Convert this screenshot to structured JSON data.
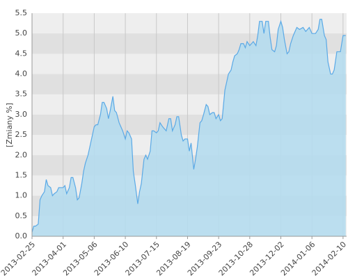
{
  "chart_data": {
    "type": "area",
    "y_label": "[Zmiany %]",
    "x": [
      "2013-02-25",
      "2013-02-27",
      "2013-03-01",
      "2013-03-04",
      "2013-03-06",
      "2013-03-08",
      "2013-03-11",
      "2013-03-13",
      "2013-03-15",
      "2013-03-18",
      "2013-03-20",
      "2013-03-22",
      "2013-03-25",
      "2013-03-27",
      "2013-04-01",
      "2013-04-03",
      "2013-04-05",
      "2013-04-08",
      "2013-04-10",
      "2013-04-12",
      "2013-04-15",
      "2013-04-17",
      "2013-04-19",
      "2013-04-22",
      "2013-04-24",
      "2013-04-26",
      "2013-04-29",
      "2013-05-01",
      "2013-05-03",
      "2013-05-06",
      "2013-05-08",
      "2013-05-10",
      "2013-05-13",
      "2013-05-15",
      "2013-05-17",
      "2013-05-20",
      "2013-05-22",
      "2013-05-24",
      "2013-05-27",
      "2013-05-29",
      "2013-05-31",
      "2013-06-03",
      "2013-06-05",
      "2013-06-07",
      "2013-06-10",
      "2013-06-12",
      "2013-06-14",
      "2013-06-17",
      "2013-06-19",
      "2013-06-21",
      "2013-06-24",
      "2013-06-26",
      "2013-06-28",
      "2013-07-01",
      "2013-07-03",
      "2013-07-05",
      "2013-07-08",
      "2013-07-10",
      "2013-07-12",
      "2013-07-15",
      "2013-07-17",
      "2013-07-19",
      "2013-07-22",
      "2013-07-24",
      "2013-07-26",
      "2013-07-29",
      "2013-07-31",
      "2013-08-02",
      "2013-08-05",
      "2013-08-07",
      "2013-08-09",
      "2013-08-12",
      "2013-08-14",
      "2013-08-16",
      "2013-08-19",
      "2013-08-21",
      "2013-08-23",
      "2013-08-26",
      "2013-08-28",
      "2013-08-30",
      "2013-09-02",
      "2013-09-04",
      "2013-09-06",
      "2013-09-09",
      "2013-09-11",
      "2013-09-13",
      "2013-09-16",
      "2013-09-18",
      "2013-09-20",
      "2013-09-23",
      "2013-09-25",
      "2013-09-27",
      "2013-09-30",
      "2013-10-02",
      "2013-10-04",
      "2013-10-07",
      "2013-10-09",
      "2013-10-11",
      "2013-10-14",
      "2013-10-16",
      "2013-10-18",
      "2013-10-21",
      "2013-10-23",
      "2013-10-25",
      "2013-10-28",
      "2013-10-30",
      "2013-11-01",
      "2013-11-04",
      "2013-11-06",
      "2013-11-08",
      "2013-11-11",
      "2013-11-13",
      "2013-11-15",
      "2013-11-18",
      "2013-11-20",
      "2013-11-22",
      "2013-11-25",
      "2013-11-27",
      "2013-11-29",
      "2013-12-02",
      "2013-12-04",
      "2013-12-06",
      "2013-12-09",
      "2013-12-11",
      "2013-12-13",
      "2013-12-16",
      "2013-12-18",
      "2013-12-20",
      "2013-12-23",
      "2013-12-27",
      "2013-12-30",
      "2014-01-03",
      "2014-01-06",
      "2014-01-08",
      "2014-01-10",
      "2014-01-13",
      "2014-01-15",
      "2014-01-17",
      "2014-01-20",
      "2014-01-22",
      "2014-01-24",
      "2014-01-27",
      "2014-01-29",
      "2014-01-31",
      "2014-02-03",
      "2014-02-05",
      "2014-02-07",
      "2014-02-10",
      "2014-02-13"
    ],
    "values": [
      0.1,
      0.25,
      0.25,
      0.3,
      0.9,
      1.0,
      1.1,
      1.4,
      1.25,
      1.2,
      1.0,
      1.05,
      1.1,
      1.2,
      1.2,
      1.25,
      1.05,
      1.2,
      1.45,
      1.45,
      1.2,
      0.9,
      0.95,
      1.3,
      1.6,
      1.8,
      2.0,
      2.2,
      2.4,
      2.7,
      2.75,
      2.75,
      3.0,
      3.3,
      3.3,
      3.15,
      2.9,
      3.1,
      3.45,
      3.1,
      3.05,
      2.8,
      2.7,
      2.6,
      2.4,
      2.6,
      2.55,
      2.4,
      1.6,
      1.3,
      0.8,
      1.1,
      1.3,
      1.9,
      2.0,
      1.9,
      2.1,
      2.6,
      2.6,
      2.55,
      2.6,
      2.8,
      2.7,
      2.65,
      2.6,
      2.9,
      2.9,
      2.6,
      2.75,
      2.95,
      2.95,
      2.5,
      2.35,
      2.4,
      2.4,
      2.1,
      2.3,
      1.65,
      1.9,
      2.2,
      2.8,
      2.85,
      3.0,
      3.25,
      3.2,
      3.0,
      3.05,
      3.05,
      2.9,
      3.0,
      2.85,
      2.9,
      3.6,
      3.8,
      4.0,
      4.1,
      4.3,
      4.45,
      4.5,
      4.6,
      4.75,
      4.75,
      4.65,
      4.8,
      4.7,
      4.75,
      4.8,
      4.7,
      4.95,
      5.3,
      5.3,
      5.0,
      5.3,
      5.3,
      4.9,
      4.6,
      4.55,
      4.7,
      5.1,
      5.3,
      5.15,
      4.85,
      4.5,
      4.55,
      4.75,
      4.95,
      5.05,
      5.15,
      5.1,
      5.15,
      5.05,
      5.15,
      5.0,
      5.0,
      5.0,
      5.1,
      5.35,
      5.35,
      4.95,
      4.85,
      4.3,
      4.0,
      4.0,
      4.1,
      4.55,
      4.55,
      4.55,
      4.95,
      4.95
    ],
    "color": "#5aa9e6",
    "fill": "#b5dcee",
    "xlim": [
      "2013-02-25",
      "2014-02-14"
    ],
    "xticks": [
      "2013-02-25",
      "2013-04-01",
      "2013-05-06",
      "2013-06-10",
      "2013-07-15",
      "2013-08-19",
      "2013-09-23",
      "2013-10-28",
      "2013-12-02",
      "2014-01-06",
      "2014-02-10"
    ],
    "ylim": [
      0,
      5.5
    ],
    "yticks": [
      {
        "value": 0,
        "label": "0.0"
      },
      0.5,
      {
        "value": 1,
        "label": "1.0"
      },
      1.5,
      {
        "value": 2,
        "label": "2.0"
      },
      2.5,
      {
        "value": 3,
        "label": "3.0"
      },
      3.5,
      {
        "value": 4,
        "label": "4.0"
      },
      4.5,
      {
        "value": 5,
        "label": "5.0"
      },
      5.5
    ],
    "grid": true
  }
}
